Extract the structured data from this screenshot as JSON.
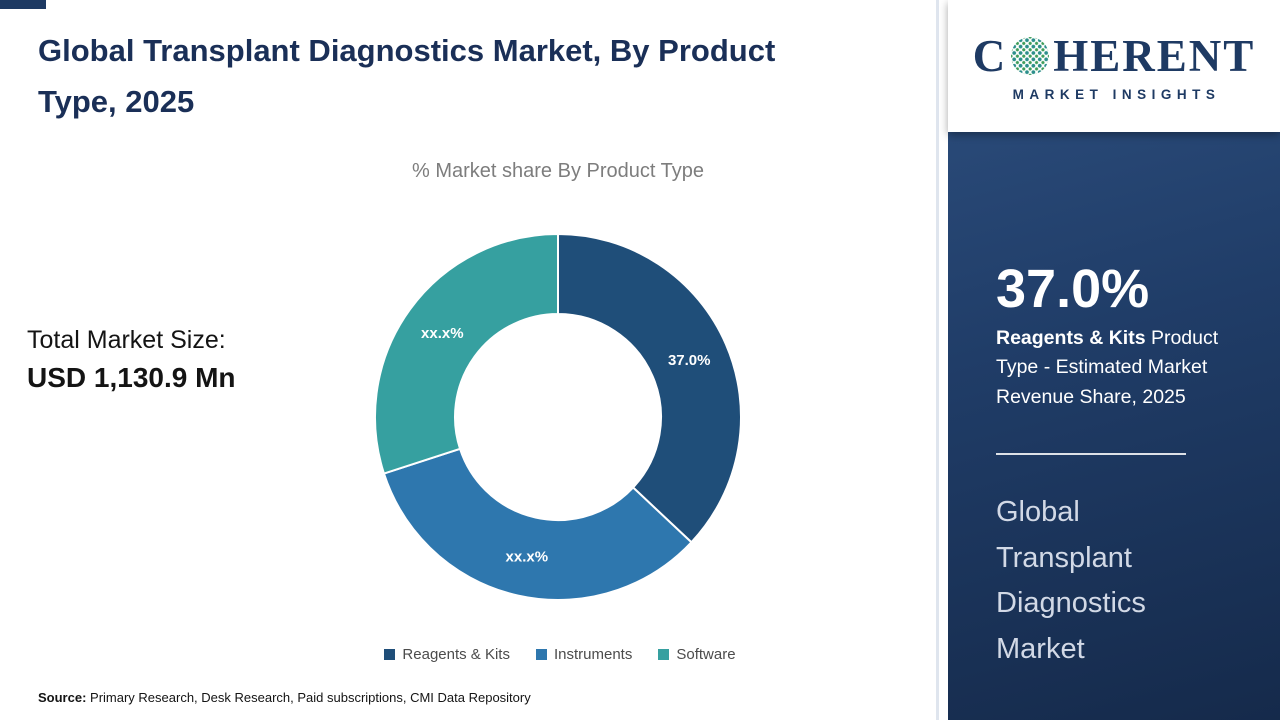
{
  "page": {
    "title": "Global Transplant Diagnostics Market, By Product Type, 2025",
    "source_label": "Source:",
    "source_text": " Primary Research, Desk Research, Paid subscriptions, CMI Data Repository"
  },
  "main": {
    "total_market_label": "Total Market Size:",
    "total_market_value": "USD 1,130.9 Mn"
  },
  "chart_data": {
    "type": "pie",
    "donut": true,
    "title": "% Market share By Product Type",
    "categories": [
      "Reagents & Kits",
      "Instruments",
      "Software"
    ],
    "values": [
      37.0,
      33.0,
      30.0
    ],
    "values_estimated_for_masked_slices": true,
    "slice_labels": [
      "37.0%",
      "xx.x%",
      "xx.x%"
    ],
    "colors": [
      "#1f4e79",
      "#2e77ae",
      "#36a0a0"
    ],
    "legend_position": "bottom"
  },
  "sidebar": {
    "logo_part1": "C",
    "logo_part2": "HERENT",
    "logo_subtitle": "MARKET INSIGHTS",
    "stat_value": "37.0%",
    "stat_bold": "Reagents & Kits",
    "stat_rest": " Product Type - Estimated Market Revenue Share, 2025",
    "market_name": "Global Transplant Diagnostics Market"
  }
}
